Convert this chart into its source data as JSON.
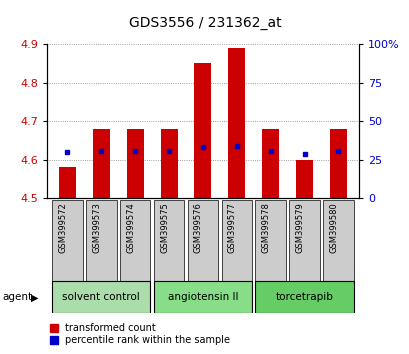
{
  "title": "GDS3556 / 231362_at",
  "samples": [
    "GSM399572",
    "GSM399573",
    "GSM399574",
    "GSM399575",
    "GSM399576",
    "GSM399577",
    "GSM399578",
    "GSM399579",
    "GSM399580"
  ],
  "bar_values": [
    4.58,
    4.68,
    4.68,
    4.68,
    4.85,
    4.89,
    4.68,
    4.6,
    4.68
  ],
  "bar_base": 4.5,
  "percentile_values": [
    30,
    31,
    31,
    31,
    33,
    34,
    31,
    29,
    31
  ],
  "groups": [
    {
      "label": "solvent control",
      "samples": [
        0,
        1,
        2
      ],
      "color": "#aaddaa"
    },
    {
      "label": "angiotensin II",
      "samples": [
        3,
        4,
        5
      ],
      "color": "#88dd88"
    },
    {
      "label": "torcetrapib",
      "samples": [
        6,
        7,
        8
      ],
      "color": "#66cc66"
    }
  ],
  "ylim_left": [
    4.5,
    4.9
  ],
  "ylim_right": [
    0,
    100
  ],
  "yticks_left": [
    4.5,
    4.6,
    4.7,
    4.8,
    4.9
  ],
  "yticks_right": [
    0,
    25,
    50,
    75,
    100
  ],
  "bar_color": "#cc0000",
  "dot_color": "#0000cc",
  "left_tick_color": "#cc0000",
  "right_tick_color": "#0000cc",
  "title_fontsize": 10,
  "tick_fontsize": 8,
  "sample_fontsize": 6,
  "group_fontsize": 7.5,
  "legend_fontsize": 7,
  "legend_labels": [
    "transformed count",
    "percentile rank within the sample"
  ]
}
